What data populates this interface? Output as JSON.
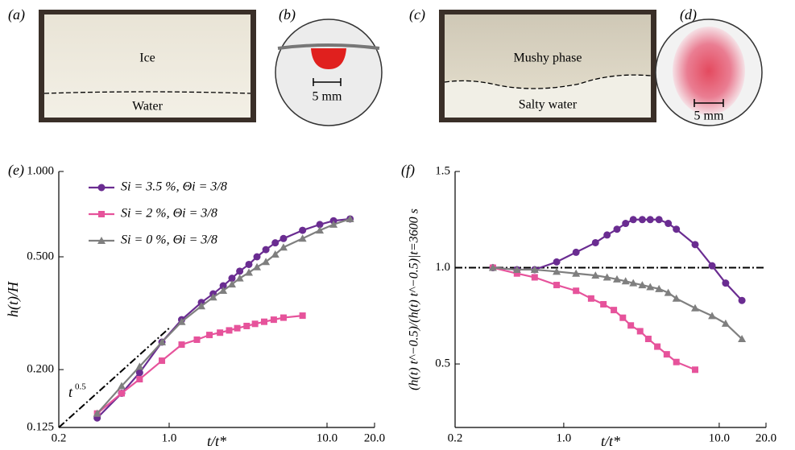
{
  "panels": [
    {
      "label": "(a)",
      "top_text": "Ice",
      "bottom_text": "Water"
    },
    {
      "label": "(b)",
      "scale": "5 mm"
    },
    {
      "label": "(c)",
      "top_text": "Mushy phase",
      "bottom_text": "Salty water"
    },
    {
      "label": "(d)",
      "scale": "5 mm"
    }
  ],
  "chart_data": [
    {
      "type": "line",
      "panel": "(e)",
      "xlabel": "t/t*",
      "ylabel": "h(t)/H",
      "log_x": true,
      "log_y": true,
      "xlim": [
        0.2,
        20
      ],
      "ylim": [
        0.125,
        1.0
      ],
      "xticks": [
        0.2,
        {
          "value": 1,
          "label": "1.0"
        },
        {
          "value": 10,
          "label": "10.0"
        },
        {
          "value": 20,
          "label": "20.0"
        }
      ],
      "yticks": [
        0.125,
        {
          "value": 0.2,
          "label": "0.200"
        },
        {
          "value": 0.5,
          "label": "0.500"
        },
        {
          "value": 1,
          "label": "1.000"
        }
      ],
      "legend": "upper left",
      "reference_line": {
        "x": [
          0.2,
          1.0
        ],
        "values": [
          0.125,
          0.28
        ],
        "label": "t",
        "exponent": "0.5"
      },
      "series": [
        {
          "name": "Si = 3.5 %, Θi = 3/8",
          "color": "#6a2c91",
          "marker": "circle",
          "x": [
            0.35,
            0.5,
            0.65,
            0.9,
            1.2,
            1.6,
            1.9,
            2.2,
            2.5,
            2.8,
            3.2,
            3.6,
            4.1,
            4.7,
            5.3,
            7,
            9,
            11,
            14
          ],
          "values": [
            0.135,
            0.165,
            0.195,
            0.25,
            0.3,
            0.345,
            0.37,
            0.395,
            0.42,
            0.445,
            0.47,
            0.5,
            0.53,
            0.56,
            0.58,
            0.62,
            0.65,
            0.67,
            0.68
          ]
        },
        {
          "name": "Si = 2 %, Θi = 3/8",
          "color": "#e6539b",
          "marker": "square",
          "x": [
            0.35,
            0.5,
            0.65,
            0.9,
            1.2,
            1.5,
            1.8,
            2.1,
            2.4,
            2.7,
            3.1,
            3.5,
            4,
            4.6,
            5.3,
            7
          ],
          "values": [
            0.14,
            0.165,
            0.185,
            0.215,
            0.245,
            0.255,
            0.265,
            0.27,
            0.275,
            0.28,
            0.285,
            0.29,
            0.295,
            0.3,
            0.305,
            0.31
          ]
        },
        {
          "name": "Si = 0 %, Θi = 3/8",
          "color": "#7f7f7f",
          "marker": "triangle",
          "x": [
            0.35,
            0.5,
            0.65,
            0.9,
            1.2,
            1.6,
            1.9,
            2.2,
            2.5,
            2.8,
            3.2,
            3.6,
            4.1,
            4.7,
            5.3,
            7,
            9,
            11,
            14
          ],
          "values": [
            0.14,
            0.175,
            0.205,
            0.25,
            0.295,
            0.335,
            0.36,
            0.38,
            0.4,
            0.42,
            0.44,
            0.46,
            0.48,
            0.51,
            0.54,
            0.58,
            0.62,
            0.65,
            0.68
          ]
        }
      ]
    },
    {
      "type": "line",
      "panel": "(f)",
      "xlabel": "t/t*",
      "ylabel": "(h(t) t^−0.5)/(h(t) t^−0.5)|t=3600 s",
      "log_x": true,
      "log_y": false,
      "xlim": [
        0.2,
        20
      ],
      "ylim": [
        0.17,
        1.5
      ],
      "xticks": [
        0.2,
        {
          "value": 1,
          "label": "1.0"
        },
        {
          "value": 10,
          "label": "10.0"
        },
        {
          "value": 20,
          "label": "20.0"
        }
      ],
      "yticks": [
        0.5,
        {
          "value": 1,
          "label": "1.0"
        },
        1.5
      ],
      "reference_line": {
        "x": [
          0.2,
          20
        ],
        "values": [
          1,
          1
        ]
      },
      "series": [
        {
          "color": "#6a2c91",
          "marker": "circle",
          "x": [
            0.35,
            0.5,
            0.65,
            0.9,
            1.2,
            1.6,
            1.9,
            2.2,
            2.5,
            2.8,
            3.2,
            3.6,
            4.1,
            4.7,
            5.3,
            7,
            9,
            11,
            14
          ],
          "values": [
            1.0,
            0.99,
            0.99,
            1.03,
            1.08,
            1.13,
            1.17,
            1.2,
            1.23,
            1.25,
            1.25,
            1.25,
            1.25,
            1.23,
            1.2,
            1.12,
            1.01,
            0.92,
            0.83
          ]
        },
        {
          "color": "#e6539b",
          "marker": "square",
          "x": [
            0.35,
            0.5,
            0.65,
            0.9,
            1.2,
            1.5,
            1.8,
            2.1,
            2.4,
            2.7,
            3.1,
            3.5,
            4,
            4.6,
            5.3,
            7
          ],
          "values": [
            1.0,
            0.97,
            0.95,
            0.91,
            0.88,
            0.84,
            0.81,
            0.78,
            0.74,
            0.7,
            0.67,
            0.63,
            0.59,
            0.55,
            0.51,
            0.47
          ]
        },
        {
          "color": "#7f7f7f",
          "marker": "triangle",
          "x": [
            0.35,
            0.5,
            0.65,
            0.9,
            1.2,
            1.6,
            1.9,
            2.2,
            2.5,
            2.8,
            3.2,
            3.6,
            4.1,
            4.7,
            5.3,
            7,
            9,
            11,
            14
          ],
          "values": [
            1.0,
            0.99,
            0.99,
            0.98,
            0.97,
            0.96,
            0.95,
            0.94,
            0.93,
            0.92,
            0.91,
            0.9,
            0.89,
            0.87,
            0.84,
            0.79,
            0.75,
            0.71,
            0.63
          ]
        }
      ]
    }
  ]
}
